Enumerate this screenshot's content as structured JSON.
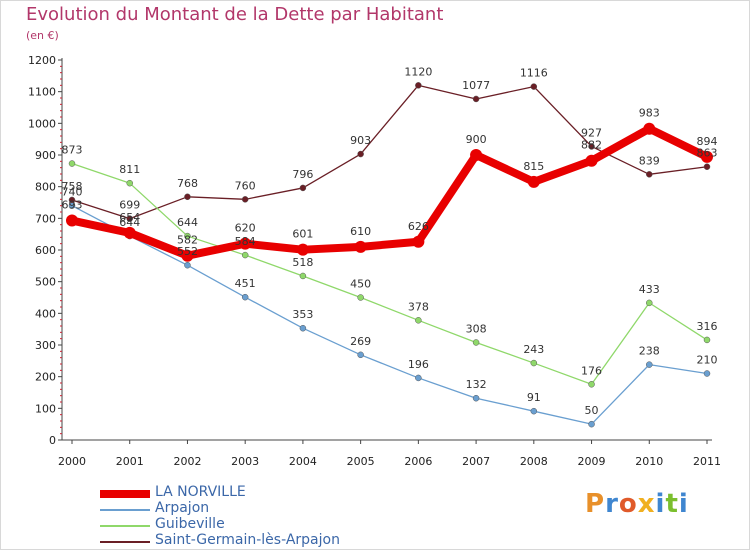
{
  "header": {
    "title": "Evolution du Montant de la Dette par Habitant",
    "subtitle": "(en €)"
  },
  "logo": {
    "text": "Proxiti",
    "colors": [
      "#e8902a",
      "#3f86d0",
      "#e05a2a",
      "#f0b020",
      "#3f86d0",
      "#7bbf2e",
      "#3f86d0"
    ]
  },
  "chart_data": {
    "type": "line",
    "x": [
      "2000",
      "2001",
      "2002",
      "2003",
      "2004",
      "2005",
      "2006",
      "2007",
      "2008",
      "2009",
      "2010",
      "2011"
    ],
    "ylim": [
      0,
      1200
    ],
    "yticks": [
      0,
      100,
      200,
      300,
      400,
      500,
      600,
      700,
      800,
      900,
      1000,
      1100,
      1200
    ],
    "grid": false,
    "legend_position": "bottom-left",
    "series": [
      {
        "name": "LA NORVILLE",
        "color": "#e80000",
        "values": [
          693,
          654,
          582,
          620,
          601,
          610,
          626,
          900,
          815,
          882,
          983,
          894
        ]
      },
      {
        "name": "Arpajon",
        "color": "#6a9fd0",
        "values": [
          740,
          644,
          552,
          451,
          353,
          269,
          196,
          132,
          91,
          50,
          238,
          210
        ]
      },
      {
        "name": "Guibeville",
        "color": "#8fd86a",
        "values": [
          873,
          811,
          644,
          584,
          518,
          450,
          378,
          308,
          243,
          176,
          433,
          316
        ]
      },
      {
        "name": "Saint-Germain-lès-Arpajon",
        "color": "#6a1f26",
        "values": [
          758,
          699,
          768,
          760,
          796,
          903,
          1120,
          1077,
          1116,
          927,
          839,
          863
        ]
      }
    ]
  }
}
